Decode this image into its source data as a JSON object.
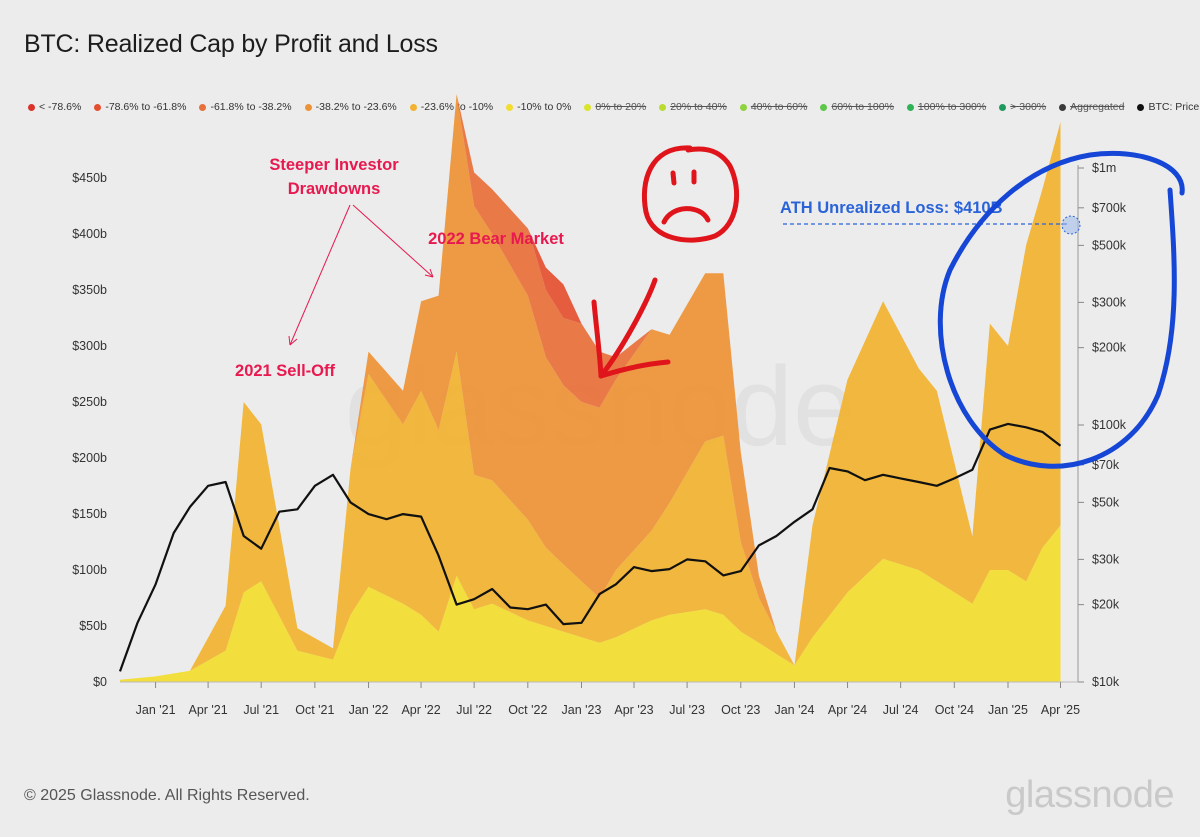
{
  "title": "BTC: Realized Cap by Profit and Loss",
  "legend": [
    {
      "label": "< -78.6%",
      "color": "#d9342a",
      "active": true
    },
    {
      "label": "-78.6% to -61.8%",
      "color": "#e4502f",
      "active": true
    },
    {
      "label": "-61.8% to -38.2%",
      "color": "#e8703a",
      "active": true
    },
    {
      "label": "-38.2% to -23.6%",
      "color": "#ee9236",
      "active": true
    },
    {
      "label": "-23.6% to -10%",
      "color": "#f1b22f",
      "active": true
    },
    {
      "label": "-10% to 0%",
      "color": "#f2dc2e",
      "active": true
    },
    {
      "label": "0% to 20%",
      "color": "#d9e42a",
      "active": false
    },
    {
      "label": "20% to 40%",
      "color": "#b9dc2f",
      "active": false
    },
    {
      "label": "40% to 60%",
      "color": "#8fd23b",
      "active": false
    },
    {
      "label": "60% to 100%",
      "color": "#5ec648",
      "active": false
    },
    {
      "label": "100% to 300%",
      "color": "#30b257",
      "active": false
    },
    {
      "label": "> 300%",
      "color": "#1e9a5e",
      "active": false
    },
    {
      "label": "Aggregated",
      "color": "#3a3a3a",
      "active": false
    },
    {
      "label": "BTC: Price [USD]",
      "color": "#111111",
      "active": true
    }
  ],
  "chart_data": {
    "type": "area",
    "x_type": "date",
    "x_ticks": [
      "Jan '21",
      "Apr '21",
      "Jul '21",
      "Oct '21",
      "Jan '22",
      "Apr '22",
      "Jul '22",
      "Oct '22",
      "Jan '23",
      "Apr '23",
      "Jul '23",
      "Oct '23",
      "Jan '24",
      "Apr '24",
      "Jul '24",
      "Oct '24",
      "Jan '25",
      "Apr '25"
    ],
    "y_left": {
      "label": "",
      "ticks": [
        "$0",
        "$50b",
        "$100b",
        "$150b",
        "$200b",
        "$250b",
        "$300b",
        "$350b",
        "$400b",
        "$450b"
      ],
      "range": [
        0,
        460
      ],
      "unit": "billion USD"
    },
    "y_right": {
      "label": "",
      "scale": "log",
      "ticks": [
        "$10k",
        "$20k",
        "$30k",
        "$50k",
        "$70k",
        "$100k",
        "$200k",
        "$300k",
        "$500k",
        "$700k",
        "$1m"
      ],
      "tick_values": [
        10000,
        20000,
        30000,
        50000,
        70000,
        100000,
        200000,
        300000,
        500000,
        700000,
        1000000
      ],
      "range": [
        10000,
        1000000
      ]
    },
    "x": [
      "2020-11",
      "2021-01",
      "2021-03",
      "2021-05",
      "2021-06",
      "2021-07",
      "2021-09",
      "2021-11",
      "2021-12",
      "2022-01",
      "2022-03",
      "2022-04",
      "2022-05",
      "2022-06",
      "2022-07",
      "2022-08",
      "2022-10",
      "2022-11",
      "2022-12",
      "2023-01",
      "2023-02",
      "2023-03",
      "2023-05",
      "2023-06",
      "2023-08",
      "2023-09",
      "2023-10",
      "2023-11",
      "2023-12",
      "2024-01",
      "2024-02",
      "2024-04",
      "2024-06",
      "2024-08",
      "2024-09",
      "2024-11",
      "2024-12",
      "2025-01",
      "2025-02",
      "2025-03",
      "2025-04"
    ],
    "series": [
      {
        "name": "-10% to 0%",
        "color": "#f2dc2e",
        "values": [
          2,
          5,
          10,
          28,
          80,
          90,
          28,
          20,
          60,
          85,
          70,
          60,
          45,
          95,
          65,
          70,
          55,
          50,
          45,
          40,
          35,
          40,
          55,
          60,
          65,
          60,
          45,
          35,
          25,
          15,
          40,
          80,
          110,
          100,
          90,
          70,
          100,
          100,
          90,
          120,
          140
        ]
      },
      {
        "name": "-23.6% to -10%",
        "color": "#f1b22f",
        "values": [
          0,
          0,
          0,
          40,
          170,
          140,
          20,
          10,
          130,
          190,
          160,
          200,
          180,
          200,
          120,
          110,
          90,
          70,
          60,
          50,
          40,
          60,
          80,
          100,
          150,
          160,
          80,
          40,
          20,
          0,
          100,
          190,
          230,
          180,
          170,
          60,
          220,
          200,
          300,
          320,
          360
        ]
      },
      {
        "name": "-38.2% to -23.6%",
        "color": "#ee9236",
        "values": [
          0,
          0,
          0,
          0,
          0,
          0,
          0,
          0,
          0,
          20,
          30,
          80,
          120,
          230,
          240,
          220,
          200,
          170,
          160,
          160,
          170,
          170,
          180,
          150,
          150,
          145,
          80,
          20,
          0,
          0,
          0,
          0,
          0,
          0,
          0,
          0,
          0,
          0,
          0,
          0,
          0
        ]
      },
      {
        "name": "-61.8% to -38.2%",
        "color": "#e8703a",
        "values": [
          0,
          0,
          0,
          0,
          0,
          0,
          0,
          0,
          0,
          0,
          0,
          0,
          0,
          0,
          30,
          40,
          60,
          60,
          60,
          70,
          50,
          20,
          0,
          0,
          0,
          0,
          0,
          0,
          0,
          0,
          0,
          0,
          0,
          0,
          0,
          0,
          0,
          0,
          0,
          0,
          0
        ]
      },
      {
        "name": "-78.6% to -61.8%",
        "color": "#e4502f",
        "values": [
          0,
          0,
          0,
          0,
          0,
          0,
          0,
          0,
          0,
          0,
          0,
          0,
          0,
          0,
          0,
          0,
          0,
          20,
          30,
          0,
          0,
          0,
          0,
          0,
          0,
          0,
          0,
          0,
          0,
          0,
          0,
          0,
          0,
          0,
          0,
          0,
          0,
          0,
          0,
          0,
          0
        ]
      }
    ],
    "price_x": [
      "2020-11",
      "2020-12",
      "2021-01",
      "2021-02",
      "2021-03",
      "2021-04",
      "2021-05",
      "2021-06",
      "2021-07",
      "2021-08",
      "2021-09",
      "2021-10",
      "2021-11",
      "2021-12",
      "2022-01",
      "2022-02",
      "2022-03",
      "2022-04",
      "2022-05",
      "2022-06",
      "2022-07",
      "2022-08",
      "2022-09",
      "2022-10",
      "2022-11",
      "2022-12",
      "2023-01",
      "2023-02",
      "2023-03",
      "2023-04",
      "2023-05",
      "2023-06",
      "2023-07",
      "2023-08",
      "2023-09",
      "2023-10",
      "2023-11",
      "2023-12",
      "2024-01",
      "2024-02",
      "2024-03",
      "2024-04",
      "2024-05",
      "2024-06",
      "2024-07",
      "2024-08",
      "2024-09",
      "2024-10",
      "2024-11",
      "2024-12",
      "2025-01",
      "2025-02",
      "2025-03",
      "2025-04"
    ],
    "price": [
      11000,
      17000,
      24000,
      38000,
      48000,
      58000,
      60000,
      37000,
      33000,
      46000,
      47000,
      58000,
      64000,
      50000,
      45000,
      43000,
      45000,
      44000,
      31000,
      20000,
      21000,
      23000,
      19500,
      19200,
      20000,
      16800,
      17000,
      22000,
      24000,
      28000,
      27000,
      27500,
      30000,
      29500,
      26000,
      27000,
      34000,
      37000,
      42000,
      47000,
      68000,
      66000,
      61000,
      64000,
      62000,
      60000,
      58000,
      62000,
      67000,
      96000,
      101000,
      98000,
      94000,
      83000
    ],
    "annotations": [
      {
        "text": "Steeper Investor",
        "color": "#e8194f"
      },
      {
        "text": "Drawdowns",
        "color": "#e8194f"
      },
      {
        "text": "2022 Bear Market",
        "color": "#e8194f"
      },
      {
        "text": "2021 Sell-Off",
        "color": "#e8194f"
      },
      {
        "text": "ATH Unrealized Loss: $410B",
        "color": "#2a63d8"
      }
    ],
    "watermark": "glassnode"
  },
  "footer": {
    "copyright": "© 2025 Glassnode. All Rights Reserved.",
    "brand": "glassnode"
  }
}
